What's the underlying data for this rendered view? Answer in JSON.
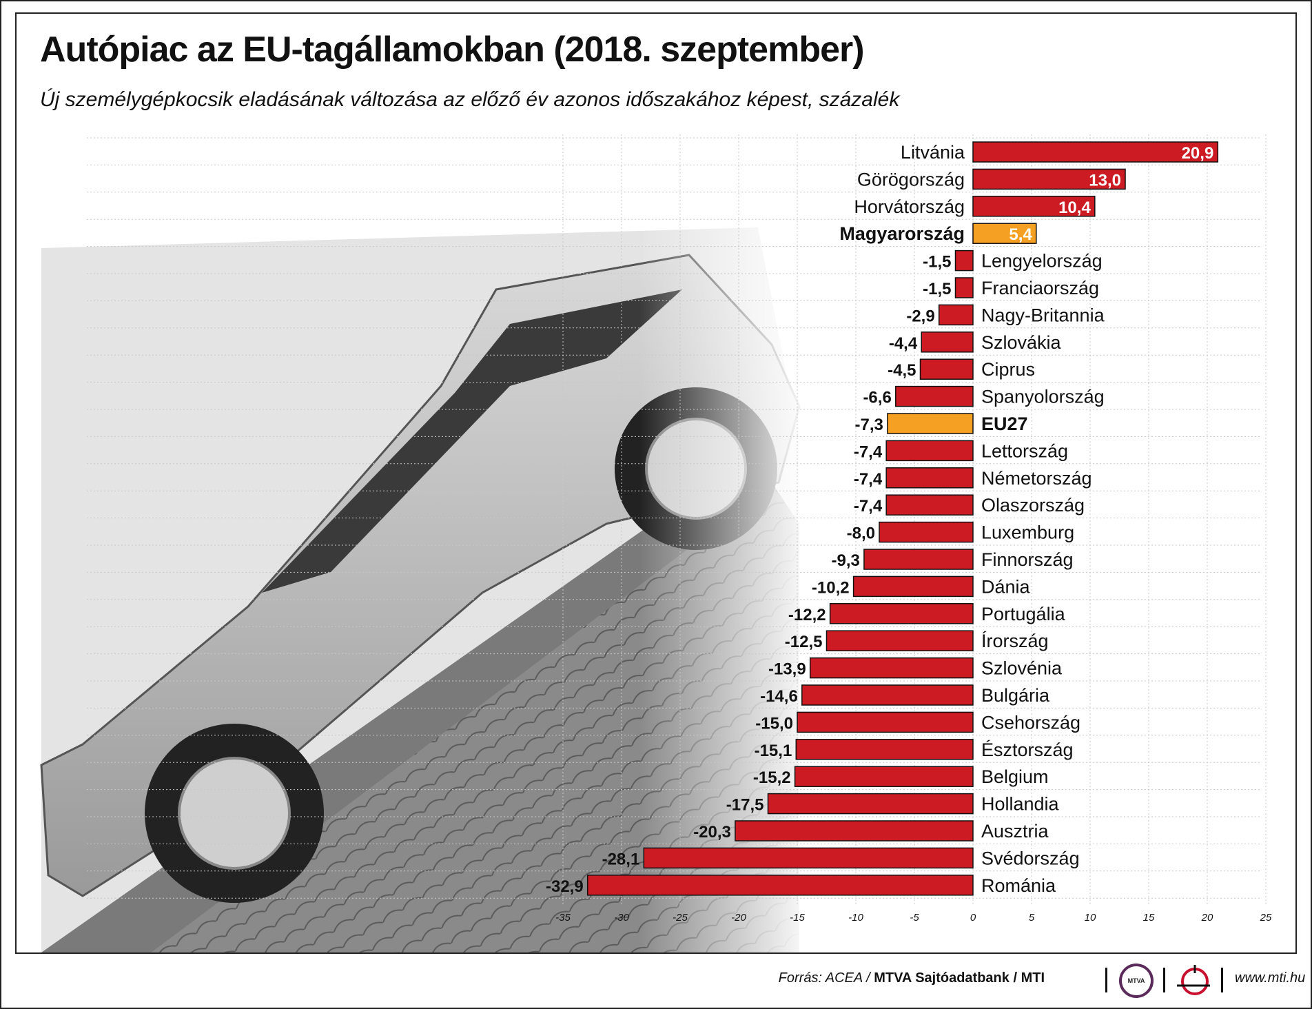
{
  "title": "Autópiac az EU-tagállamokban (2018. szeptember)",
  "subtitle": "Új személygépkocsik eladásának változása az előző év azonos időszakához képest, százalék",
  "colors": {
    "bar": "#cc1b22",
    "highlight": "#f5a023",
    "grid": "#c8c8c8"
  },
  "chart_data": {
    "type": "bar",
    "orientation": "horizontal",
    "xlim": [
      -35,
      25
    ],
    "x_ticks": [
      -35,
      -30,
      -25,
      -20,
      -15,
      -10,
      -5,
      0,
      5,
      10,
      15,
      20,
      25
    ],
    "grid": true,
    "categories": [
      "Litvánia",
      "Görögország",
      "Horvátország",
      "Magyarország",
      "Lengyelország",
      "Franciaország",
      "Nagy-Britannia",
      "Szlovákia",
      "Ciprus",
      "Spanyolország",
      "EU27",
      "Lettország",
      "Németország",
      "Olaszország",
      "Luxemburg",
      "Finnország",
      "Dánia",
      "Portugália",
      "Írország",
      "Szlovénia",
      "Bulgária",
      "Csehország",
      "Észtország",
      "Belgium",
      "Hollandia",
      "Ausztria",
      "Svédország",
      "Románia"
    ],
    "values": [
      20.9,
      13.0,
      10.4,
      5.4,
      -1.5,
      -1.5,
      -2.9,
      -4.4,
      -4.5,
      -6.6,
      -7.3,
      -7.4,
      -7.4,
      -7.4,
      -8.0,
      -9.3,
      -10.2,
      -12.2,
      -12.5,
      -13.9,
      -14.6,
      -15.0,
      -15.1,
      -15.2,
      -17.5,
      -20.3,
      -28.1,
      -32.9
    ],
    "value_labels": [
      "20,9",
      "13,0",
      "10,4",
      "5,4",
      "-1,5",
      "-1,5",
      "-2,9",
      "-4,4",
      "-4,5",
      "-6,6",
      "-7,3",
      "-7,4",
      "-7,4",
      "-7,4",
      "-8,0",
      "-9,3",
      "-10,2",
      "-12,2",
      "-12,5",
      "-13,9",
      "-14,6",
      "-15,0",
      "-15,1",
      "-15,2",
      "-17,5",
      "-20,3",
      "-28,1",
      "-32,9"
    ],
    "highlight": [
      "Magyarország",
      "EU27"
    ]
  },
  "footer": {
    "source_prefix": "Forrás: ACEA / ",
    "source_bold": "MTVA Sajtóadatbank / MTI",
    "mtva_logo_text": "MTVA",
    "url": "www.mti.hu"
  }
}
